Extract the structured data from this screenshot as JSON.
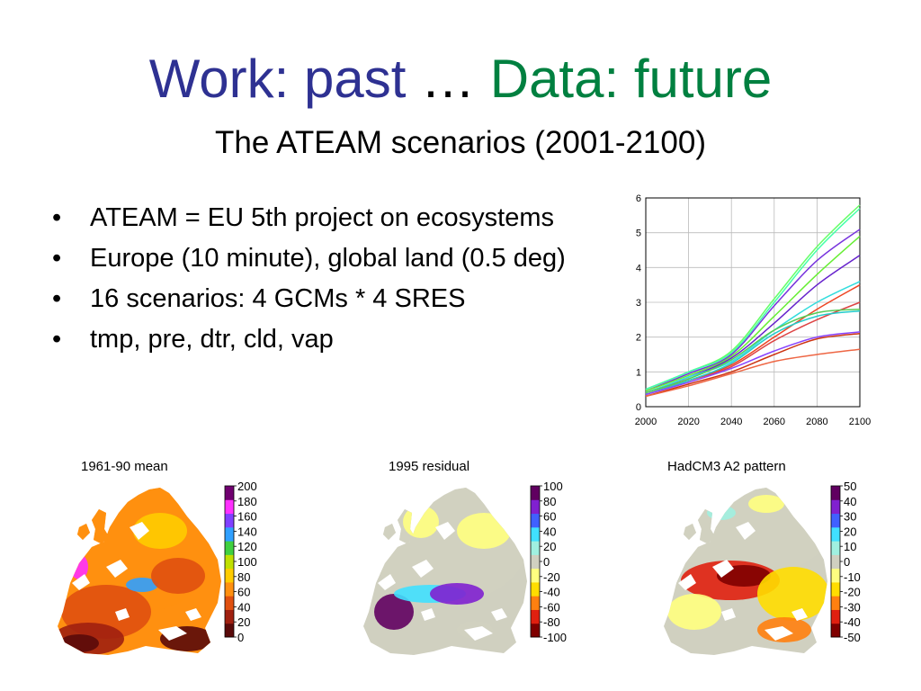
{
  "slide": {
    "title_part1": "Work: past",
    "title_sep": " … ",
    "title_part2": "Data: future",
    "subtitle": "The ATEAM scenarios (2001-2100)",
    "bullets": [
      "ATEAM = EU 5th project on ecosystems",
      "Europe (10 minute), global land (0.5 deg)",
      "16 scenarios: 4 GCMs * 4 SRES",
      "tmp, pre, dtr, cld, vap"
    ]
  },
  "chart_data": {
    "type": "line",
    "title": "",
    "xlabel": "",
    "ylabel": "",
    "xlim": [
      2000,
      2100
    ],
    "ylim": [
      0,
      6
    ],
    "x_ticks": [
      2000,
      2020,
      2040,
      2060,
      2080,
      2100
    ],
    "y_ticks": [
      0,
      1,
      2,
      3,
      4,
      5,
      6
    ],
    "grid": true,
    "x": [
      2000,
      2020,
      2040,
      2060,
      2080,
      2100
    ],
    "series": [
      {
        "color": "#66ff66",
        "values": [
          0.5,
          1.0,
          1.6,
          3.1,
          4.6,
          5.8
        ]
      },
      {
        "color": "#44ffaa",
        "values": [
          0.5,
          1.0,
          1.55,
          3.0,
          4.5,
          5.7
        ]
      },
      {
        "color": "#7733dd",
        "values": [
          0.45,
          0.95,
          1.5,
          2.9,
          4.2,
          5.1
        ]
      },
      {
        "color": "#66ee33",
        "values": [
          0.45,
          0.9,
          1.45,
          2.6,
          3.8,
          4.9
        ]
      },
      {
        "color": "#6622cc",
        "values": [
          0.4,
          0.85,
          1.4,
          2.4,
          3.5,
          4.35
        ]
      },
      {
        "color": "#33dddd",
        "values": [
          0.4,
          0.85,
          1.3,
          2.2,
          3.0,
          3.6
        ]
      },
      {
        "color": "#ee4422",
        "values": [
          0.35,
          0.75,
          1.2,
          2.0,
          2.8,
          3.5
        ]
      },
      {
        "color": "#dd4444",
        "values": [
          0.35,
          0.75,
          1.15,
          1.9,
          2.5,
          3.0
        ]
      },
      {
        "color": "#55cc55",
        "values": [
          0.4,
          0.8,
          1.35,
          2.2,
          2.7,
          2.8
        ]
      },
      {
        "color": "#22cccc",
        "values": [
          0.35,
          0.75,
          1.25,
          2.1,
          2.6,
          2.75
        ]
      },
      {
        "color": "#8844ff",
        "values": [
          0.35,
          0.7,
          1.1,
          1.6,
          2.0,
          2.15
        ]
      },
      {
        "color": "#cc3311",
        "values": [
          0.3,
          0.65,
          1.0,
          1.5,
          1.95,
          2.1
        ]
      },
      {
        "color": "#ee6644",
        "values": [
          0.3,
          0.6,
          0.95,
          1.3,
          1.5,
          1.65
        ]
      }
    ]
  },
  "maps": [
    {
      "title": "1961-90 mean",
      "scale_labels": [
        "200",
        "180",
        "160",
        "140",
        "120",
        "100",
        "80",
        "60",
        "40",
        "20",
        "0"
      ],
      "palette": [
        "#5a0a0a",
        "#a02010",
        "#e05010",
        "#ff9010",
        "#ffcc00",
        "#c0e000",
        "#40d040",
        "#30a0ff",
        "#8040ff",
        "#ff30ff",
        "#700070"
      ]
    },
    {
      "title": "1995 residual",
      "scale_labels": [
        "100",
        "80",
        "60",
        "40",
        "20",
        "0",
        "-20",
        "-40",
        "-60",
        "-80",
        "-100"
      ],
      "palette": [
        "#800000",
        "#e02010",
        "#ff8010",
        "#ffdd00",
        "#ffff80",
        "#d0d0c0",
        "#a0f0e0",
        "#40e0ff",
        "#4060ff",
        "#8020d0",
        "#600060"
      ]
    },
    {
      "title": "HadCM3 A2 pattern",
      "scale_labels": [
        "50",
        "40",
        "30",
        "20",
        "10",
        "0",
        "-10",
        "-20",
        "-30",
        "-40",
        "-50"
      ],
      "palette": [
        "#800000",
        "#e02010",
        "#ff8010",
        "#ffdd00",
        "#ffff80",
        "#d0d0c0",
        "#a0f0e0",
        "#40e0ff",
        "#4060ff",
        "#8020d0",
        "#600060"
      ]
    }
  ]
}
